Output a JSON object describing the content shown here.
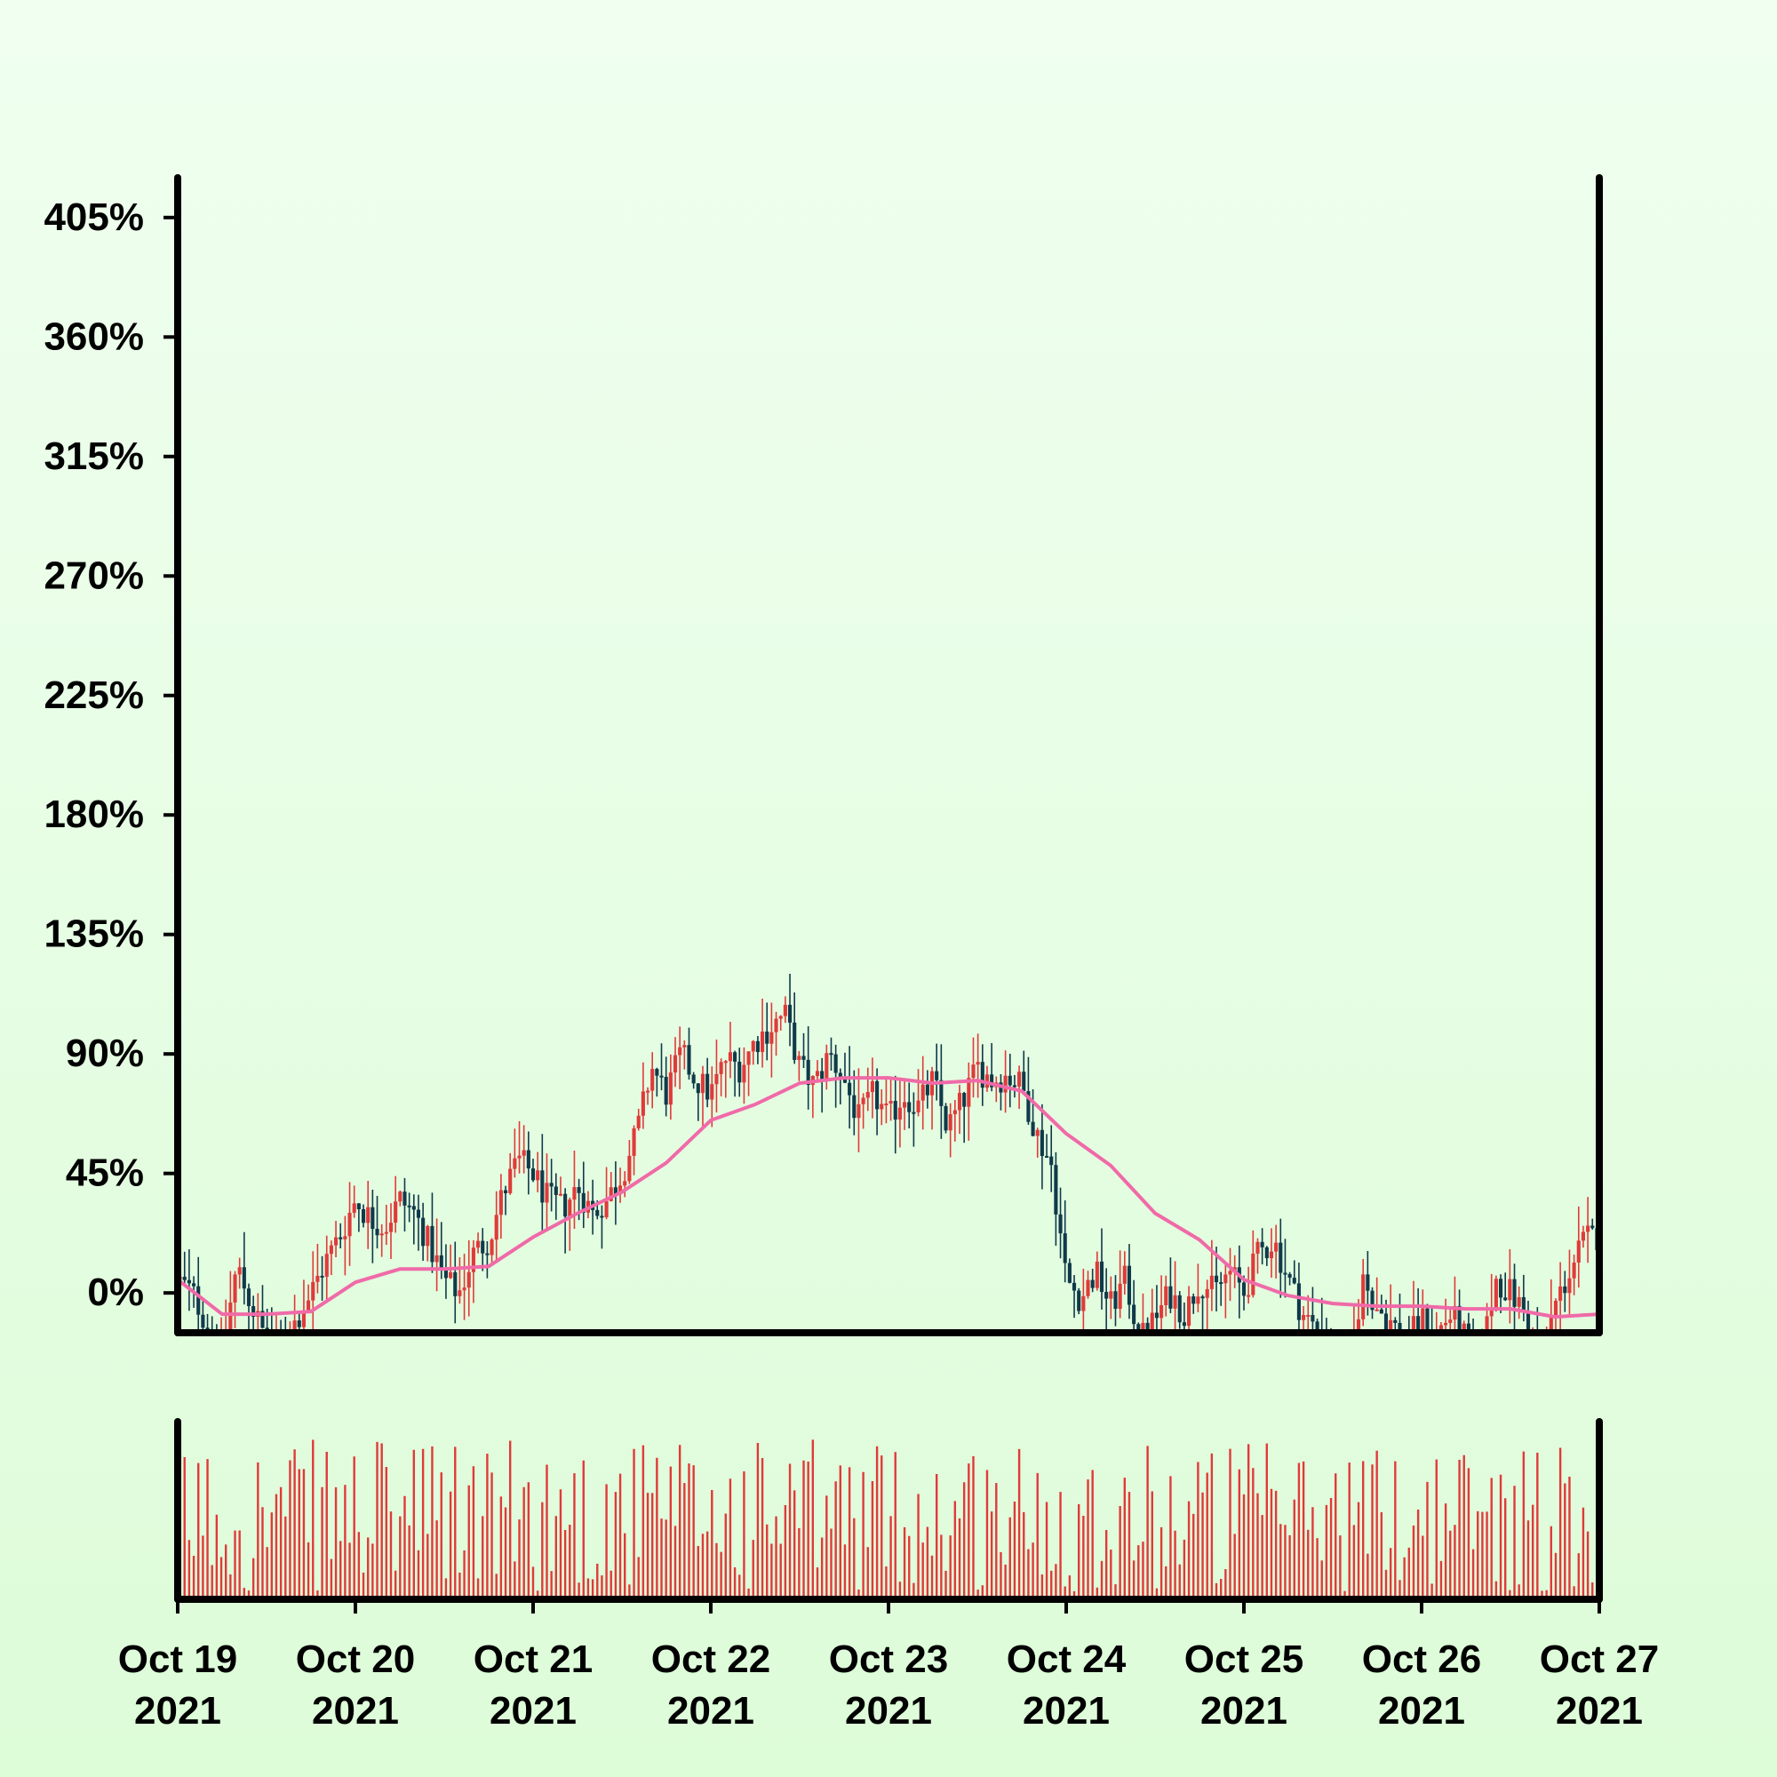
{
  "chart_data": {
    "type": "candlestick",
    "title": "",
    "xlabel": "",
    "ylabel": "",
    "x_range": [
      "2021-10-19",
      "2021-10-27"
    ],
    "ylim": [
      -15,
      420
    ],
    "y_ticks": [
      {
        "value": 0,
        "label": "0%"
      },
      {
        "value": 45,
        "label": "45%"
      },
      {
        "value": 90,
        "label": "90%"
      },
      {
        "value": 135,
        "label": "135%"
      },
      {
        "value": 180,
        "label": "180%"
      },
      {
        "value": 225,
        "label": "225%"
      },
      {
        "value": 270,
        "label": "270%"
      },
      {
        "value": 315,
        "label": "315%"
      },
      {
        "value": 360,
        "label": "360%"
      },
      {
        "value": 405,
        "label": "405%"
      }
    ],
    "x_ticks": [
      {
        "date": "2021-10-19",
        "line1": "Oct 19",
        "line2": "2021"
      },
      {
        "date": "2021-10-20",
        "line1": "Oct 20",
        "line2": "2021"
      },
      {
        "date": "2021-10-21",
        "line1": "Oct 21",
        "line2": "2021"
      },
      {
        "date": "2021-10-22",
        "line1": "Oct 22",
        "line2": "2021"
      },
      {
        "date": "2021-10-23",
        "line1": "Oct 23",
        "line2": "2021"
      },
      {
        "date": "2021-10-24",
        "line1": "Oct 24",
        "line2": "2021"
      },
      {
        "date": "2021-10-25",
        "line1": "Oct 25",
        "line2": "2021"
      },
      {
        "date": "2021-10-26",
        "line1": "Oct 26",
        "line2": "2021"
      },
      {
        "date": "2021-10-27",
        "line1": "Oct 27",
        "line2": "2021"
      }
    ],
    "close_path": [
      [
        "2021-10-19 00:00",
        5
      ],
      [
        "2021-10-19 02:00",
        0
      ],
      [
        "2021-10-19 04:00",
        -12
      ],
      [
        "2021-10-19 06:00",
        -22
      ],
      [
        "2021-10-19 08:00",
        10
      ],
      [
        "2021-10-19 10:00",
        -5
      ],
      [
        "2021-10-19 12:00",
        -18
      ],
      [
        "2021-10-19 14:00",
        -22
      ],
      [
        "2021-10-19 16:00",
        -10
      ],
      [
        "2021-10-19 18:00",
        0
      ],
      [
        "2021-10-19 20:00",
        12
      ],
      [
        "2021-10-19 22:00",
        22
      ],
      [
        "2021-10-20 00:00",
        35
      ],
      [
        "2021-10-20 02:00",
        28
      ],
      [
        "2021-10-20 04:00",
        25
      ],
      [
        "2021-10-20 06:00",
        35
      ],
      [
        "2021-10-20 08:00",
        30
      ],
      [
        "2021-10-20 10:00",
        18
      ],
      [
        "2021-10-20 12:00",
        5
      ],
      [
        "2021-10-20 14:00",
        0
      ],
      [
        "2021-10-20 16:00",
        15
      ],
      [
        "2021-10-20 18:00",
        20
      ],
      [
        "2021-10-20 20:00",
        38
      ],
      [
        "2021-10-20 22:00",
        50
      ],
      [
        "2021-10-21 00:00",
        45
      ],
      [
        "2021-10-21 02:00",
        35
      ],
      [
        "2021-10-21 04:00",
        32
      ],
      [
        "2021-10-21 06:00",
        40
      ],
      [
        "2021-10-21 08:00",
        30
      ],
      [
        "2021-10-21 10:00",
        35
      ],
      [
        "2021-10-21 12:00",
        45
      ],
      [
        "2021-10-21 14:00",
        60
      ],
      [
        "2021-10-21 16:00",
        85
      ],
      [
        "2021-10-21 18:00",
        75
      ],
      [
        "2021-10-21 20:00",
        90
      ],
      [
        "2021-10-21 22:00",
        80
      ],
      [
        "2021-10-22 00:00",
        75
      ],
      [
        "2021-10-22 02:00",
        88
      ],
      [
        "2021-10-22 04:00",
        85
      ],
      [
        "2021-10-22 06:00",
        95
      ],
      [
        "2021-10-22 08:00",
        100
      ],
      [
        "2021-10-22 10:00",
        105
      ],
      [
        "2021-10-22 12:00",
        85
      ],
      [
        "2021-10-22 14:00",
        78
      ],
      [
        "2021-10-22 16:00",
        90
      ],
      [
        "2021-10-22 18:00",
        80
      ],
      [
        "2021-10-22 20:00",
        65
      ],
      [
        "2021-10-22 22:00",
        75
      ],
      [
        "2021-10-23 00:00",
        65
      ],
      [
        "2021-10-23 02:00",
        75
      ],
      [
        "2021-10-23 04:00",
        70
      ],
      [
        "2021-10-23 06:00",
        80
      ],
      [
        "2021-10-23 08:00",
        62
      ],
      [
        "2021-10-23 10:00",
        72
      ],
      [
        "2021-10-23 12:00",
        85
      ],
      [
        "2021-10-23 14:00",
        80
      ],
      [
        "2021-10-23 16:00",
        82
      ],
      [
        "2021-10-23 18:00",
        78
      ],
      [
        "2021-10-23 20:00",
        60
      ],
      [
        "2021-10-23 22:00",
        48
      ],
      [
        "2021-10-24 00:00",
        5
      ],
      [
        "2021-10-24 02:00",
        -2
      ],
      [
        "2021-10-24 04:00",
        8
      ],
      [
        "2021-10-24 06:00",
        -5
      ],
      [
        "2021-10-24 08:00",
        5
      ],
      [
        "2021-10-24 10:00",
        -18
      ],
      [
        "2021-10-24 12:00",
        -10
      ],
      [
        "2021-10-24 14:00",
        0
      ],
      [
        "2021-10-24 16:00",
        -8
      ],
      [
        "2021-10-24 18:00",
        5
      ],
      [
        "2021-10-24 20:00",
        0
      ],
      [
        "2021-10-24 22:00",
        8
      ],
      [
        "2021-10-25 00:00",
        0
      ],
      [
        "2021-10-25 02:00",
        15
      ],
      [
        "2021-10-25 04:00",
        20
      ],
      [
        "2021-10-25 06:00",
        5
      ],
      [
        "2021-10-25 08:00",
        -8
      ],
      [
        "2021-10-25 10:00",
        -15
      ],
      [
        "2021-10-25 12:00",
        -22
      ],
      [
        "2021-10-25 14:00",
        -35
      ],
      [
        "2021-10-25 16:00",
        5
      ],
      [
        "2021-10-25 18:00",
        -5
      ],
      [
        "2021-10-25 20:00",
        -12
      ],
      [
        "2021-10-25 22:00",
        -18
      ],
      [
        "2021-10-26 00:00",
        -10
      ],
      [
        "2021-10-26 02:00",
        -15
      ],
      [
        "2021-10-26 04:00",
        -8
      ],
      [
        "2021-10-26 06:00",
        -18
      ],
      [
        "2021-10-26 08:00",
        -25
      ],
      [
        "2021-10-26 10:00",
        5
      ],
      [
        "2021-10-26 12:00",
        0
      ],
      [
        "2021-10-26 14:00",
        -8
      ],
      [
        "2021-10-26 16:00",
        -25
      ],
      [
        "2021-10-26 18:00",
        -5
      ],
      [
        "2021-10-26 20:00",
        8
      ],
      [
        "2021-10-26 22:00",
        20
      ],
      [
        "2021-10-27 00:00",
        22
      ]
    ],
    "series": [
      {
        "name": "",
        "type": "line",
        "color": "#f06aa8",
        "points": [
          [
            "2021-10-19 00:00",
            5
          ],
          [
            "2021-10-19 06:00",
            -8
          ],
          [
            "2021-10-19 12:00",
            -8
          ],
          [
            "2021-10-19 18:00",
            -7
          ],
          [
            "2021-10-20 00:00",
            4
          ],
          [
            "2021-10-20 06:00",
            9
          ],
          [
            "2021-10-20 12:00",
            9
          ],
          [
            "2021-10-20 18:00",
            10
          ],
          [
            "2021-10-21 00:00",
            21
          ],
          [
            "2021-10-21 06:00",
            30
          ],
          [
            "2021-10-21 12:00",
            38
          ],
          [
            "2021-10-21 18:00",
            49
          ],
          [
            "2021-10-22 00:00",
            65
          ],
          [
            "2021-10-22 06:00",
            71
          ],
          [
            "2021-10-22 12:00",
            79
          ],
          [
            "2021-10-22 18:00",
            81
          ],
          [
            "2021-10-23 00:00",
            81
          ],
          [
            "2021-10-23 06:00",
            79
          ],
          [
            "2021-10-23 12:00",
            80
          ],
          [
            "2021-10-23 18:00",
            76
          ],
          [
            "2021-10-24 00:00",
            60
          ],
          [
            "2021-10-24 06:00",
            48
          ],
          [
            "2021-10-24 12:00",
            30
          ],
          [
            "2021-10-24 18:00",
            20
          ],
          [
            "2021-10-25 00:00",
            5
          ],
          [
            "2021-10-25 06:00",
            -1
          ],
          [
            "2021-10-25 12:00",
            -4
          ],
          [
            "2021-10-25 18:00",
            -5
          ],
          [
            "2021-10-26 00:00",
            -5
          ],
          [
            "2021-10-26 06:00",
            -6
          ],
          [
            "2021-10-26 12:00",
            -6
          ],
          [
            "2021-10-26 18:00",
            -9
          ],
          [
            "2021-10-27 00:00",
            -8
          ]
        ]
      }
    ],
    "colors": {
      "up": "#e03a3a",
      "down": "#0f3a4a",
      "volume": "#e03a3a",
      "moving_average": "#f06aa8",
      "axes": "#000000"
    },
    "legend": "none",
    "grid": false
  }
}
